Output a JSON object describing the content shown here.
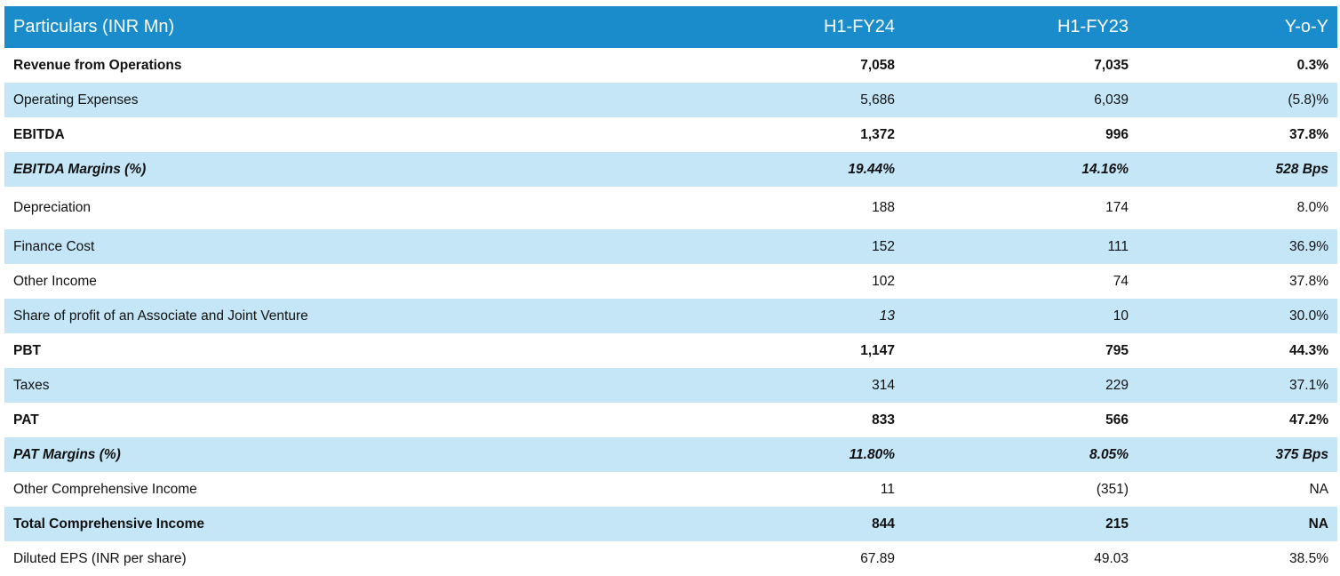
{
  "table": {
    "header": [
      "Particulars (INR Mn)",
      "H1-FY24",
      "H1-FY23",
      "Y-o-Y"
    ],
    "rows": [
      {
        "label": "Revenue from Operations",
        "fy24": "7,058",
        "fy23": "7,035",
        "yoy": "0.3%",
        "style": "bold",
        "shade": false
      },
      {
        "label": "Operating Expenses",
        "fy24": "5,686",
        "fy23": "6,039",
        "yoy": "(5.8)%",
        "style": "normal",
        "shade": true
      },
      {
        "label": "EBITDA",
        "fy24": "1,372",
        "fy23": "996",
        "yoy": "37.8%",
        "style": "bold",
        "shade": false
      },
      {
        "label": "EBITDA Margins (%)",
        "fy24": "19.44%",
        "fy23": "14.16%",
        "yoy": "528 Bps",
        "style": "bold-italic",
        "shade": true
      },
      {
        "label": "Depreciation",
        "fy24": "188",
        "fy23": "174",
        "yoy": "8.0%",
        "style": "normal",
        "shade": false
      },
      {
        "label": "Finance Cost",
        "fy24": "152",
        "fy23": "111",
        "yoy": "36.9%",
        "style": "normal",
        "shade": true
      },
      {
        "label": "Other Income",
        "fy24": "102",
        "fy23": "74",
        "yoy": "37.8%",
        "style": "normal",
        "shade": false
      },
      {
        "label": "Share of profit of an Associate and Joint Venture",
        "fy24": "13",
        "fy23": "10",
        "yoy": "30.0%",
        "style": "normal",
        "shade": true
      },
      {
        "label": "PBT",
        "fy24": "1,147",
        "fy23": "795",
        "yoy": "44.3%",
        "style": "bold",
        "shade": false
      },
      {
        "label": "Taxes",
        "fy24": "314",
        "fy23": "229",
        "yoy": "37.1%",
        "style": "normal",
        "shade": true
      },
      {
        "label": "PAT",
        "fy24": "833",
        "fy23": "566",
        "yoy": "47.2%",
        "style": "bold",
        "shade": false
      },
      {
        "label": "PAT Margins (%)",
        "fy24": "11.80%",
        "fy23": "8.05%",
        "yoy": "375 Bps",
        "style": "bold-italic",
        "shade": true
      },
      {
        "label": "Other Comprehensive Income",
        "fy24": "11",
        "fy23": "(351)",
        "yoy": "NA",
        "style": "normal",
        "shade": false
      },
      {
        "label": "Total Comprehensive Income",
        "fy24": "844",
        "fy23": "215",
        "yoy": "NA",
        "style": "bold",
        "shade": true
      },
      {
        "label": "Diluted EPS (INR per share)",
        "fy24": "67.89",
        "fy23": "49.03",
        "yoy": "38.5%",
        "style": "normal",
        "shade": false
      }
    ]
  }
}
